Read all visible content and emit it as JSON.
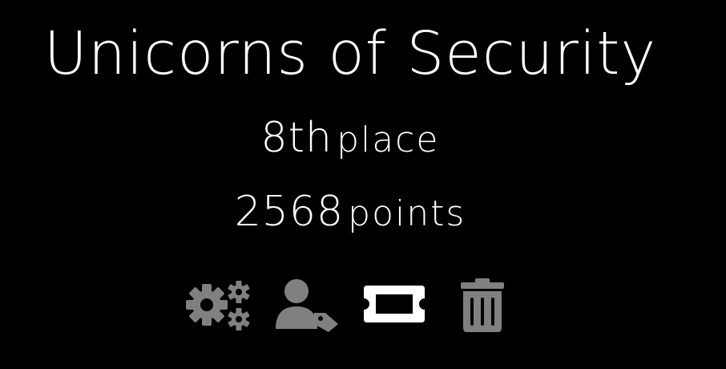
{
  "team": {
    "name": "Unicorns of Security",
    "place_value": "8th",
    "place_unit": "place",
    "points_value": "2568",
    "points_unit": "points"
  },
  "actions": [
    {
      "icon": "gears-icon",
      "color": "#808080"
    },
    {
      "icon": "user-tag-icon",
      "color": "#808080"
    },
    {
      "icon": "ticket-icon",
      "color": "#ffffff"
    },
    {
      "icon": "trash-icon",
      "color": "#808080"
    }
  ],
  "colors": {
    "background": "#000000",
    "text": "#ffffff",
    "icon_muted": "#808080",
    "icon_active": "#ffffff"
  }
}
